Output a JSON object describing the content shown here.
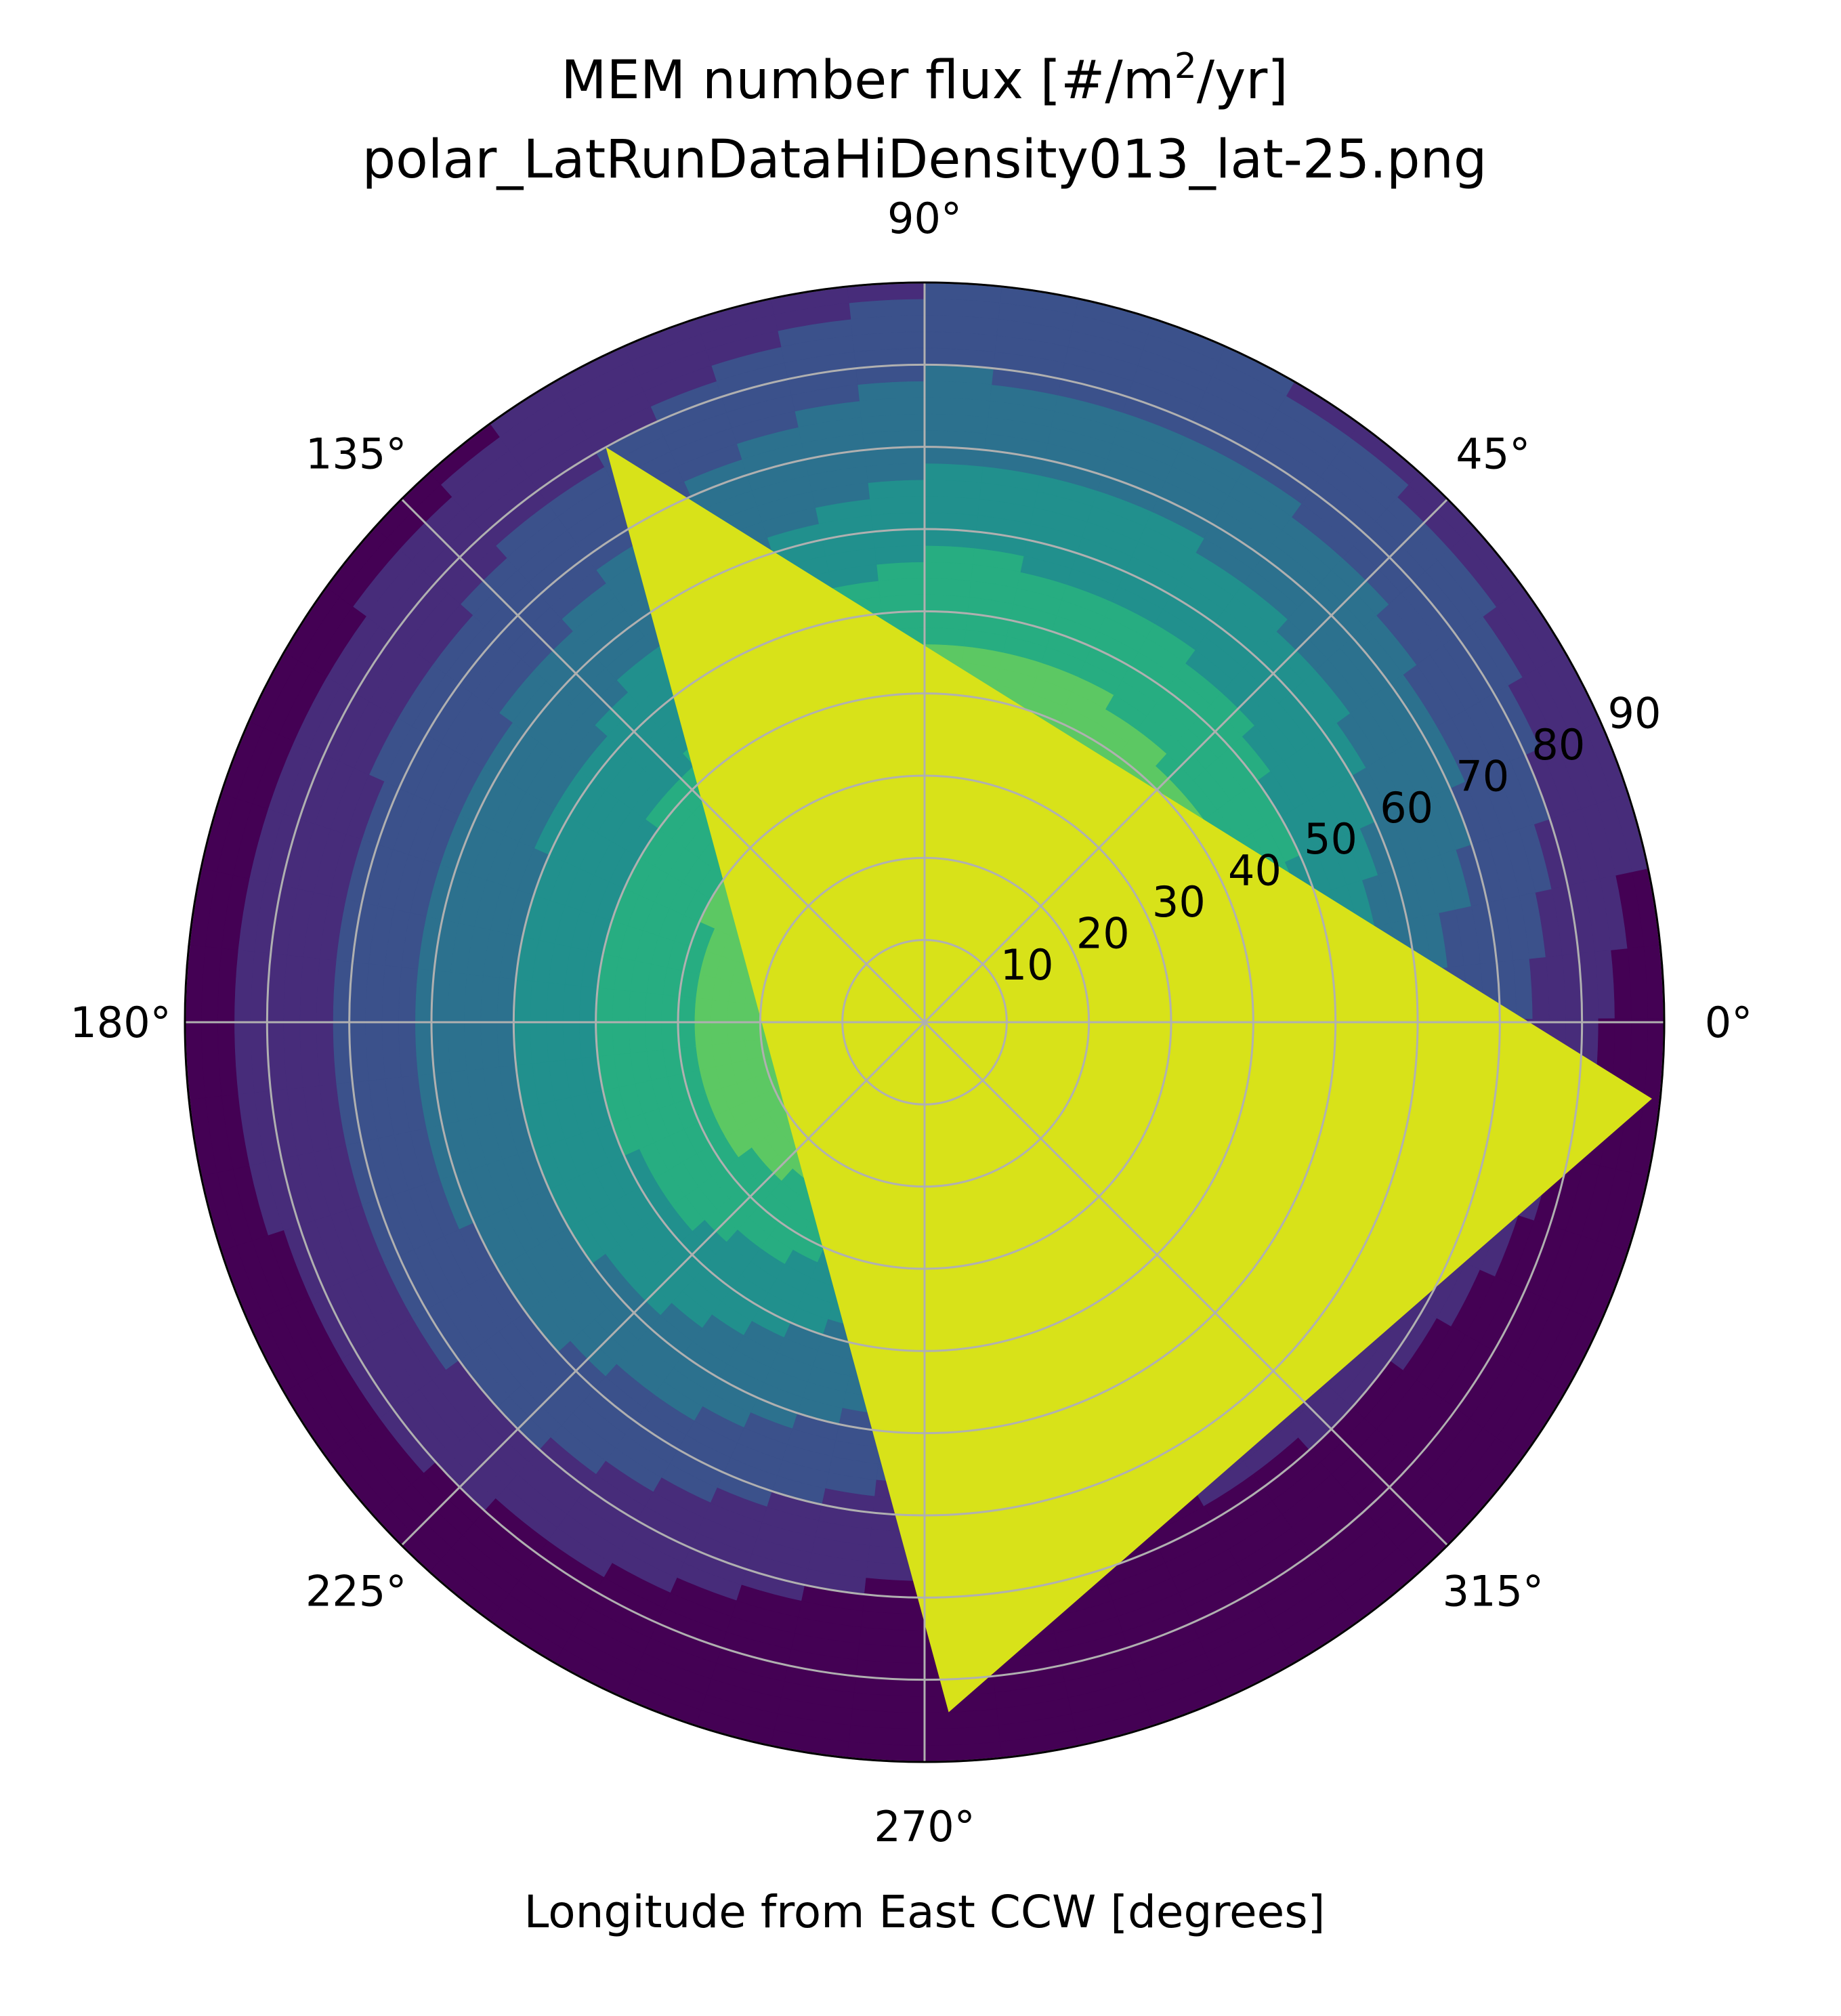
{
  "chart_data": {
    "type": "heatmap",
    "projection": "polar",
    "title": "MEM number flux [#/m²/yr]",
    "title_parts": {
      "prefix": "MEM number flux [#/m",
      "superscript": "2",
      "suffix": "/yr]"
    },
    "subtitle": "polar_LatRunDataHiDensity013_lat-25.png",
    "xlabel": "Longitude from East CCW [degrees]",
    "theta_ticks": [
      {
        "angle": 0,
        "label": "0°"
      },
      {
        "angle": 45,
        "label": "45°"
      },
      {
        "angle": 90,
        "label": "90°"
      },
      {
        "angle": 135,
        "label": "135°"
      },
      {
        "angle": 180,
        "label": "180°"
      },
      {
        "angle": 225,
        "label": "225°"
      },
      {
        "angle": 270,
        "label": "270°"
      },
      {
        "angle": 315,
        "label": "315°"
      }
    ],
    "r_ticks": [
      {
        "value": 10,
        "label": "10"
      },
      {
        "value": 20,
        "label": "20"
      },
      {
        "value": 30,
        "label": "30"
      },
      {
        "value": 40,
        "label": "40"
      },
      {
        "value": 50,
        "label": "50"
      },
      {
        "value": 60,
        "label": "60"
      },
      {
        "value": 70,
        "label": "70"
      },
      {
        "value": 80,
        "label": "80"
      },
      {
        "value": 90,
        "label": "90"
      }
    ],
    "r_range": [
      0,
      90
    ],
    "theta_direction": "counterclockwise",
    "theta_zero_location": "east",
    "grid": true,
    "colormap": "viridis",
    "colormap_levels": [
      "#440154",
      "#472c7a",
      "#3b518b",
      "#2c718e",
      "#21908d",
      "#27ad81",
      "#5cc863",
      "#aadc32",
      "#d8e219"
    ],
    "level_description": "Filled contour levels of number flux in 10 steps; flux lowest near longitude 270° at the outer rim, highest at small radius and along the 0°/180° band.",
    "overlay_triangle": {
      "color": "#d8e219",
      "vertices_polar": [
        {
          "theta": 119,
          "r": 80
        },
        {
          "theta": 272,
          "r": 84
        },
        {
          "theta": 354,
          "r": 89
        }
      ]
    },
    "field_model": {
      "zero_theta": 270,
      "gradient_center_note": "level increases inward and away from 270°"
    }
  }
}
